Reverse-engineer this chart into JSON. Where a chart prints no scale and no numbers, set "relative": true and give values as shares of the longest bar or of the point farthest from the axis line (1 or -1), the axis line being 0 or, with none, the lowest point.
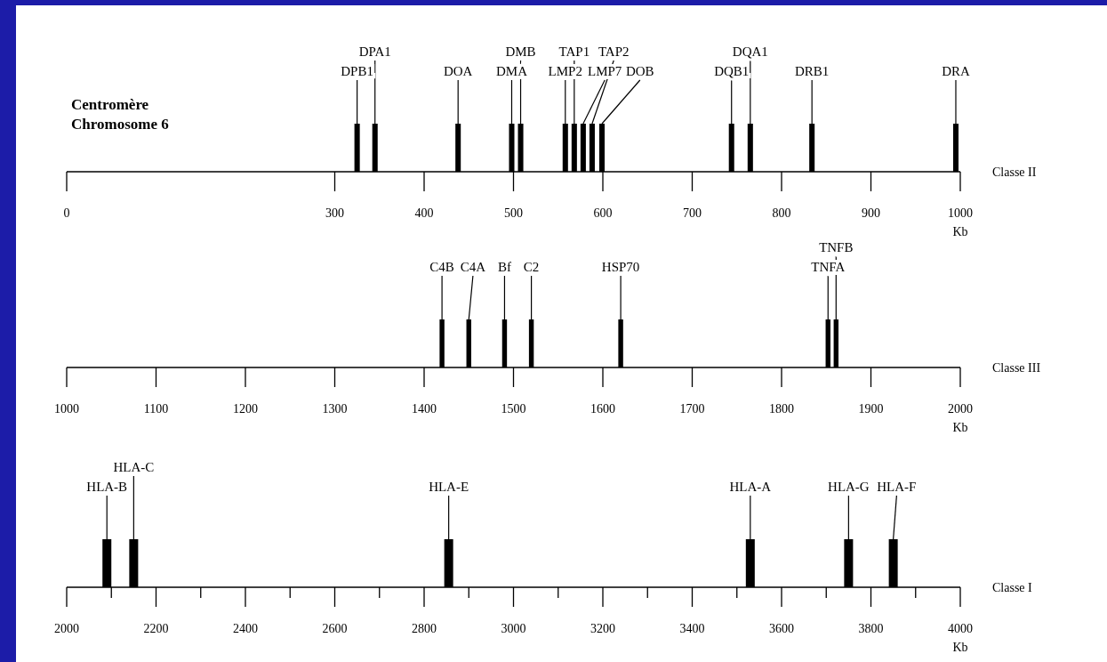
{
  "chart_data": [
    {
      "type": "bar",
      "title": "Centromère Chromosome 6",
      "xlabel": "Kb",
      "relative": true,
      "color": "#000000",
      "x": [
        325,
        345,
        438,
        498,
        508,
        558,
        568,
        578,
        588,
        599,
        744,
        765,
        834,
        995
      ],
      "values": [
        1,
        1,
        1,
        1,
        1,
        1,
        1,
        1,
        1,
        1,
        1,
        1,
        1,
        1
      ],
      "xlim": [
        0,
        1000
      ],
      "xticks": [
        0,
        300,
        400,
        500,
        600,
        700,
        800,
        900,
        1000
      ],
      "annotations": [
        "Classe II",
        {
          "text": "DPB1",
          "x": 325
        },
        {
          "text": "DPA1",
          "x": 345
        },
        {
          "text": "DOA",
          "x": 438
        },
        {
          "text": "DMA",
          "x": 498
        },
        {
          "text": "DMB",
          "x": 508
        },
        {
          "text": "LMP2",
          "x": 558
        },
        {
          "text": "TAP1",
          "x": 568
        },
        {
          "text": "LMP7",
          "x": 578
        },
        {
          "text": "TAP2",
          "x": 588
        },
        {
          "text": "DOB",
          "x": 599
        },
        {
          "text": "DQB1",
          "x": 744
        },
        {
          "text": "DQA1",
          "x": 765
        },
        {
          "text": "DRB1",
          "x": 834
        },
        {
          "text": "DRA",
          "x": 995
        }
      ]
    },
    {
      "type": "bar",
      "xlabel": "Kb",
      "relative": true,
      "color": "#000000",
      "x": [
        1420,
        1450,
        1490,
        1520,
        1620,
        1852,
        1861
      ],
      "values": [
        1,
        1,
        1,
        1,
        1,
        1,
        1
      ],
      "xlim": [
        1000,
        2000
      ],
      "xticks": [
        1000,
        1100,
        1200,
        1300,
        1400,
        1500,
        1600,
        1700,
        1800,
        1900,
        2000
      ],
      "annotations": [
        "Classe III",
        {
          "text": "C4B",
          "x": 1420
        },
        {
          "text": "C4A",
          "x": 1450
        },
        {
          "text": "Bf",
          "x": 1490
        },
        {
          "text": "C2",
          "x": 1520
        },
        {
          "text": "HSP70",
          "x": 1620
        },
        {
          "text": "TNFA",
          "x": 1852
        },
        {
          "text": "TNFB",
          "x": 1861
        }
      ]
    },
    {
      "type": "bar",
      "xlabel": "Kb",
      "relative": true,
      "color": "#000000",
      "x": [
        2090,
        2150,
        2855,
        3530,
        3750,
        3850
      ],
      "values": [
        1,
        1,
        1,
        1,
        1,
        1
      ],
      "xlim": [
        2000,
        4000
      ],
      "xticks": [
        2000,
        {
          "value": 2100,
          "label": null
        },
        2200,
        {
          "value": 2300,
          "label": null
        },
        2400,
        {
          "value": 2500,
          "label": null
        },
        2600,
        {
          "value": 2700,
          "label": null
        },
        2800,
        {
          "value": 2900,
          "label": null
        },
        3000,
        {
          "value": 3100,
          "label": null
        },
        3200,
        {
          "value": 3300,
          "label": null
        },
        3400,
        {
          "value": 3500,
          "label": null
        },
        3600,
        {
          "value": 3700,
          "label": null
        },
        3800,
        {
          "value": 3900,
          "label": null
        },
        4000
      ],
      "annotations": [
        "Classe I",
        {
          "text": "HLA-B",
          "x": 2090
        },
        {
          "text": "HLA-C",
          "x": 2150
        },
        {
          "text": "HLA-E",
          "x": 2855
        },
        {
          "text": "HLA-A",
          "x": 3530
        },
        {
          "text": "HLA-G",
          "x": 3750
        },
        {
          "text": "HLA-F",
          "x": 3850
        }
      ]
    }
  ]
}
